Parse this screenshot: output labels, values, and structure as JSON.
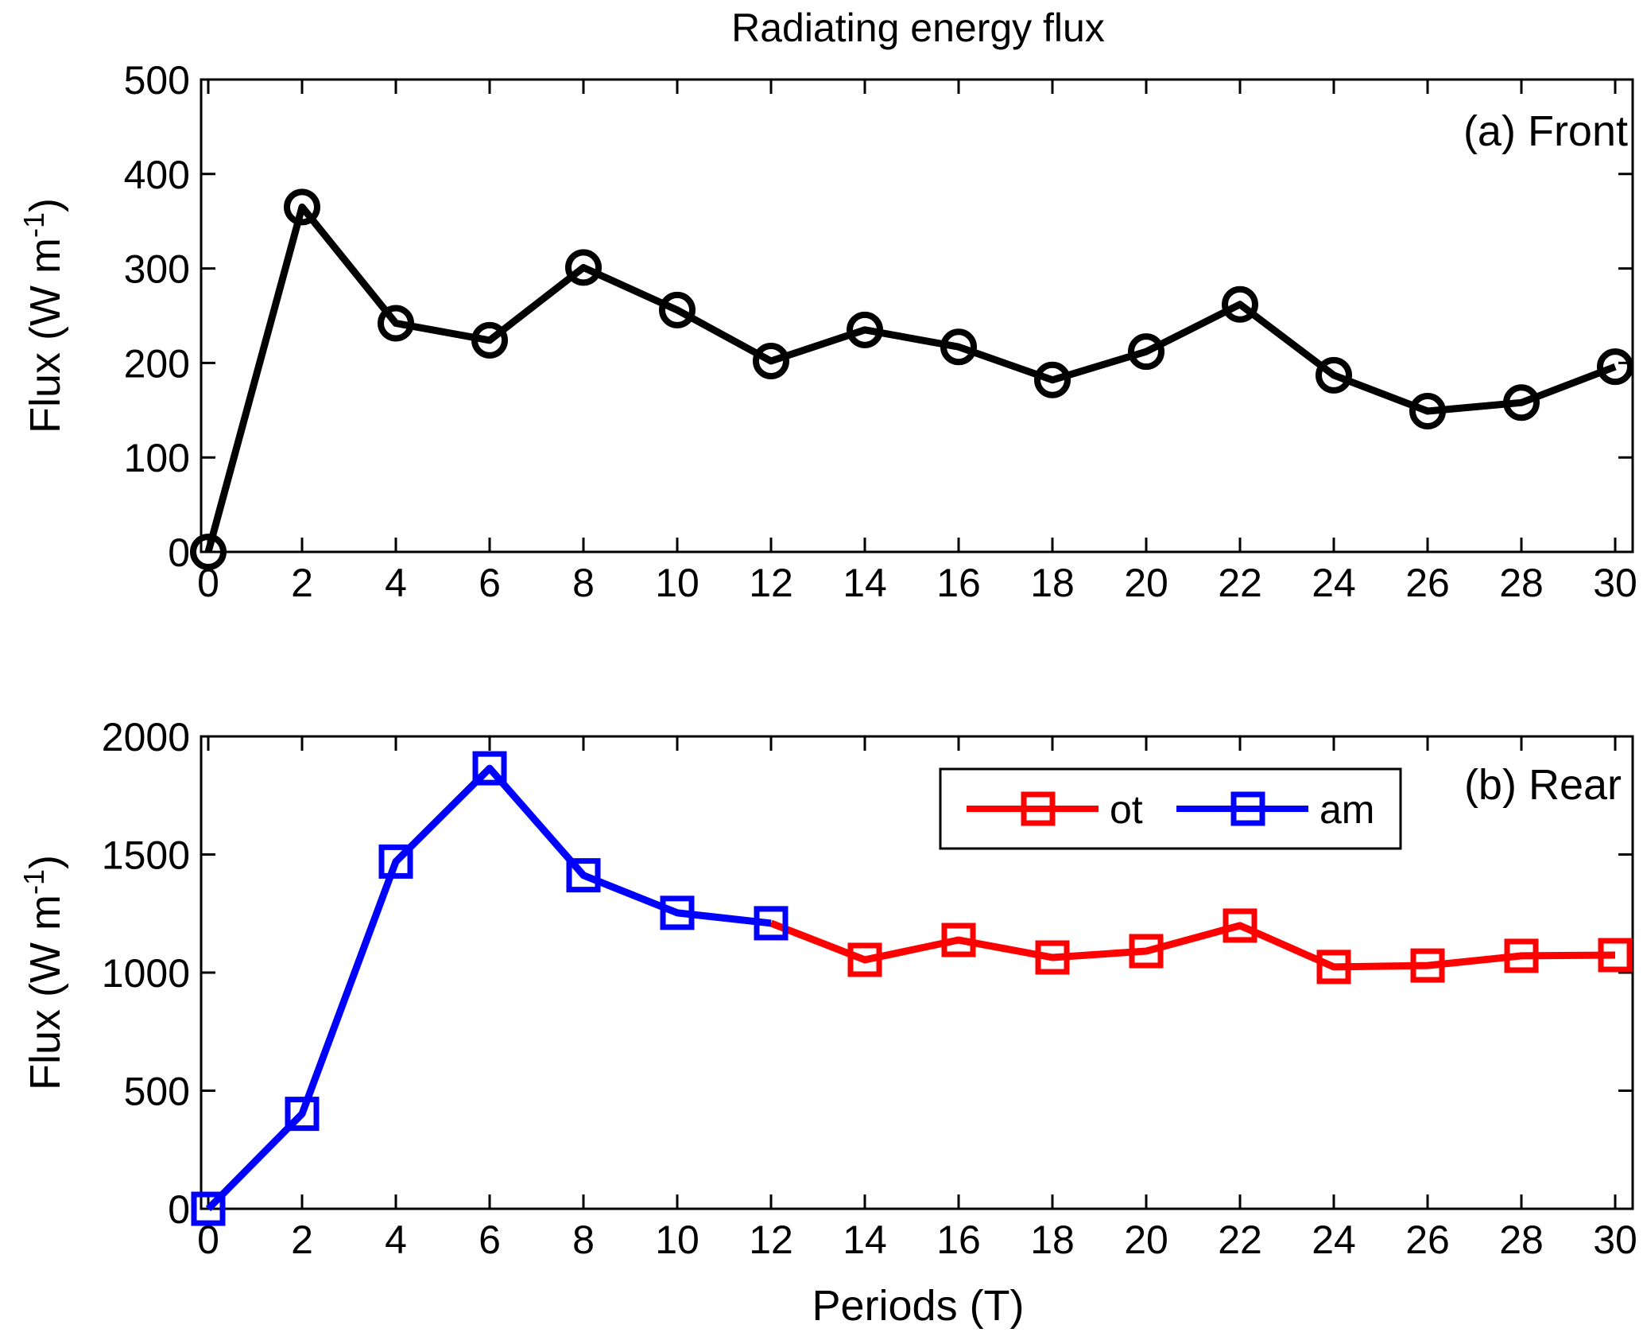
{
  "chart_data": [
    {
      "type": "line",
      "title": "Radiating energy flux",
      "panel_label": "(a) Front",
      "xlabel": "",
      "ylabel": "Flux (W m",
      "ylabel_sup": "-1",
      "ylabel_close": ")",
      "xlim": [
        0,
        30
      ],
      "ylim": [
        0,
        500
      ],
      "xticks": [
        0,
        2,
        4,
        6,
        8,
        10,
        12,
        14,
        16,
        18,
        20,
        22,
        24,
        26,
        28,
        30
      ],
      "yticks": [
        0,
        100,
        200,
        300,
        400,
        500
      ],
      "grid": false,
      "series": [
        {
          "name": "Front",
          "color": "#000000",
          "marker": "circle",
          "x": [
            0,
            2,
            4,
            6,
            8,
            10,
            12,
            14,
            16,
            18,
            20,
            22,
            24,
            26,
            28,
            30
          ],
          "values": [
            0,
            365,
            242,
            224,
            301,
            256,
            202,
            235,
            217,
            182,
            212,
            262,
            187,
            149,
            158,
            196
          ]
        }
      ]
    },
    {
      "type": "line",
      "title": "",
      "panel_label": "(b) Rear",
      "xlabel": "Periods (T)",
      "ylabel": "Flux (W m",
      "ylabel_sup": "-1",
      "ylabel_close": ")",
      "xlim": [
        0,
        30
      ],
      "ylim": [
        0,
        2000
      ],
      "xticks": [
        0,
        2,
        4,
        6,
        8,
        10,
        12,
        14,
        16,
        18,
        20,
        22,
        24,
        26,
        28,
        30
      ],
      "yticks": [
        0,
        500,
        1000,
        1500,
        2000
      ],
      "grid": false,
      "legend_position": "top-right",
      "series": [
        {
          "name": "ot",
          "color": "#ff0000",
          "marker": "square",
          "x": [
            12,
            14,
            16,
            18,
            20,
            22,
            24,
            26,
            28,
            30
          ],
          "values": [
            1209,
            1054,
            1138,
            1064,
            1091,
            1199,
            1024,
            1030,
            1071,
            1074
          ]
        },
        {
          "name": "am",
          "color": "#0000ff",
          "marker": "square",
          "x": [
            0,
            2,
            4,
            6,
            8,
            10,
            12
          ],
          "values": [
            0,
            402,
            1470,
            1865,
            1412,
            1253,
            1209
          ]
        }
      ]
    }
  ]
}
